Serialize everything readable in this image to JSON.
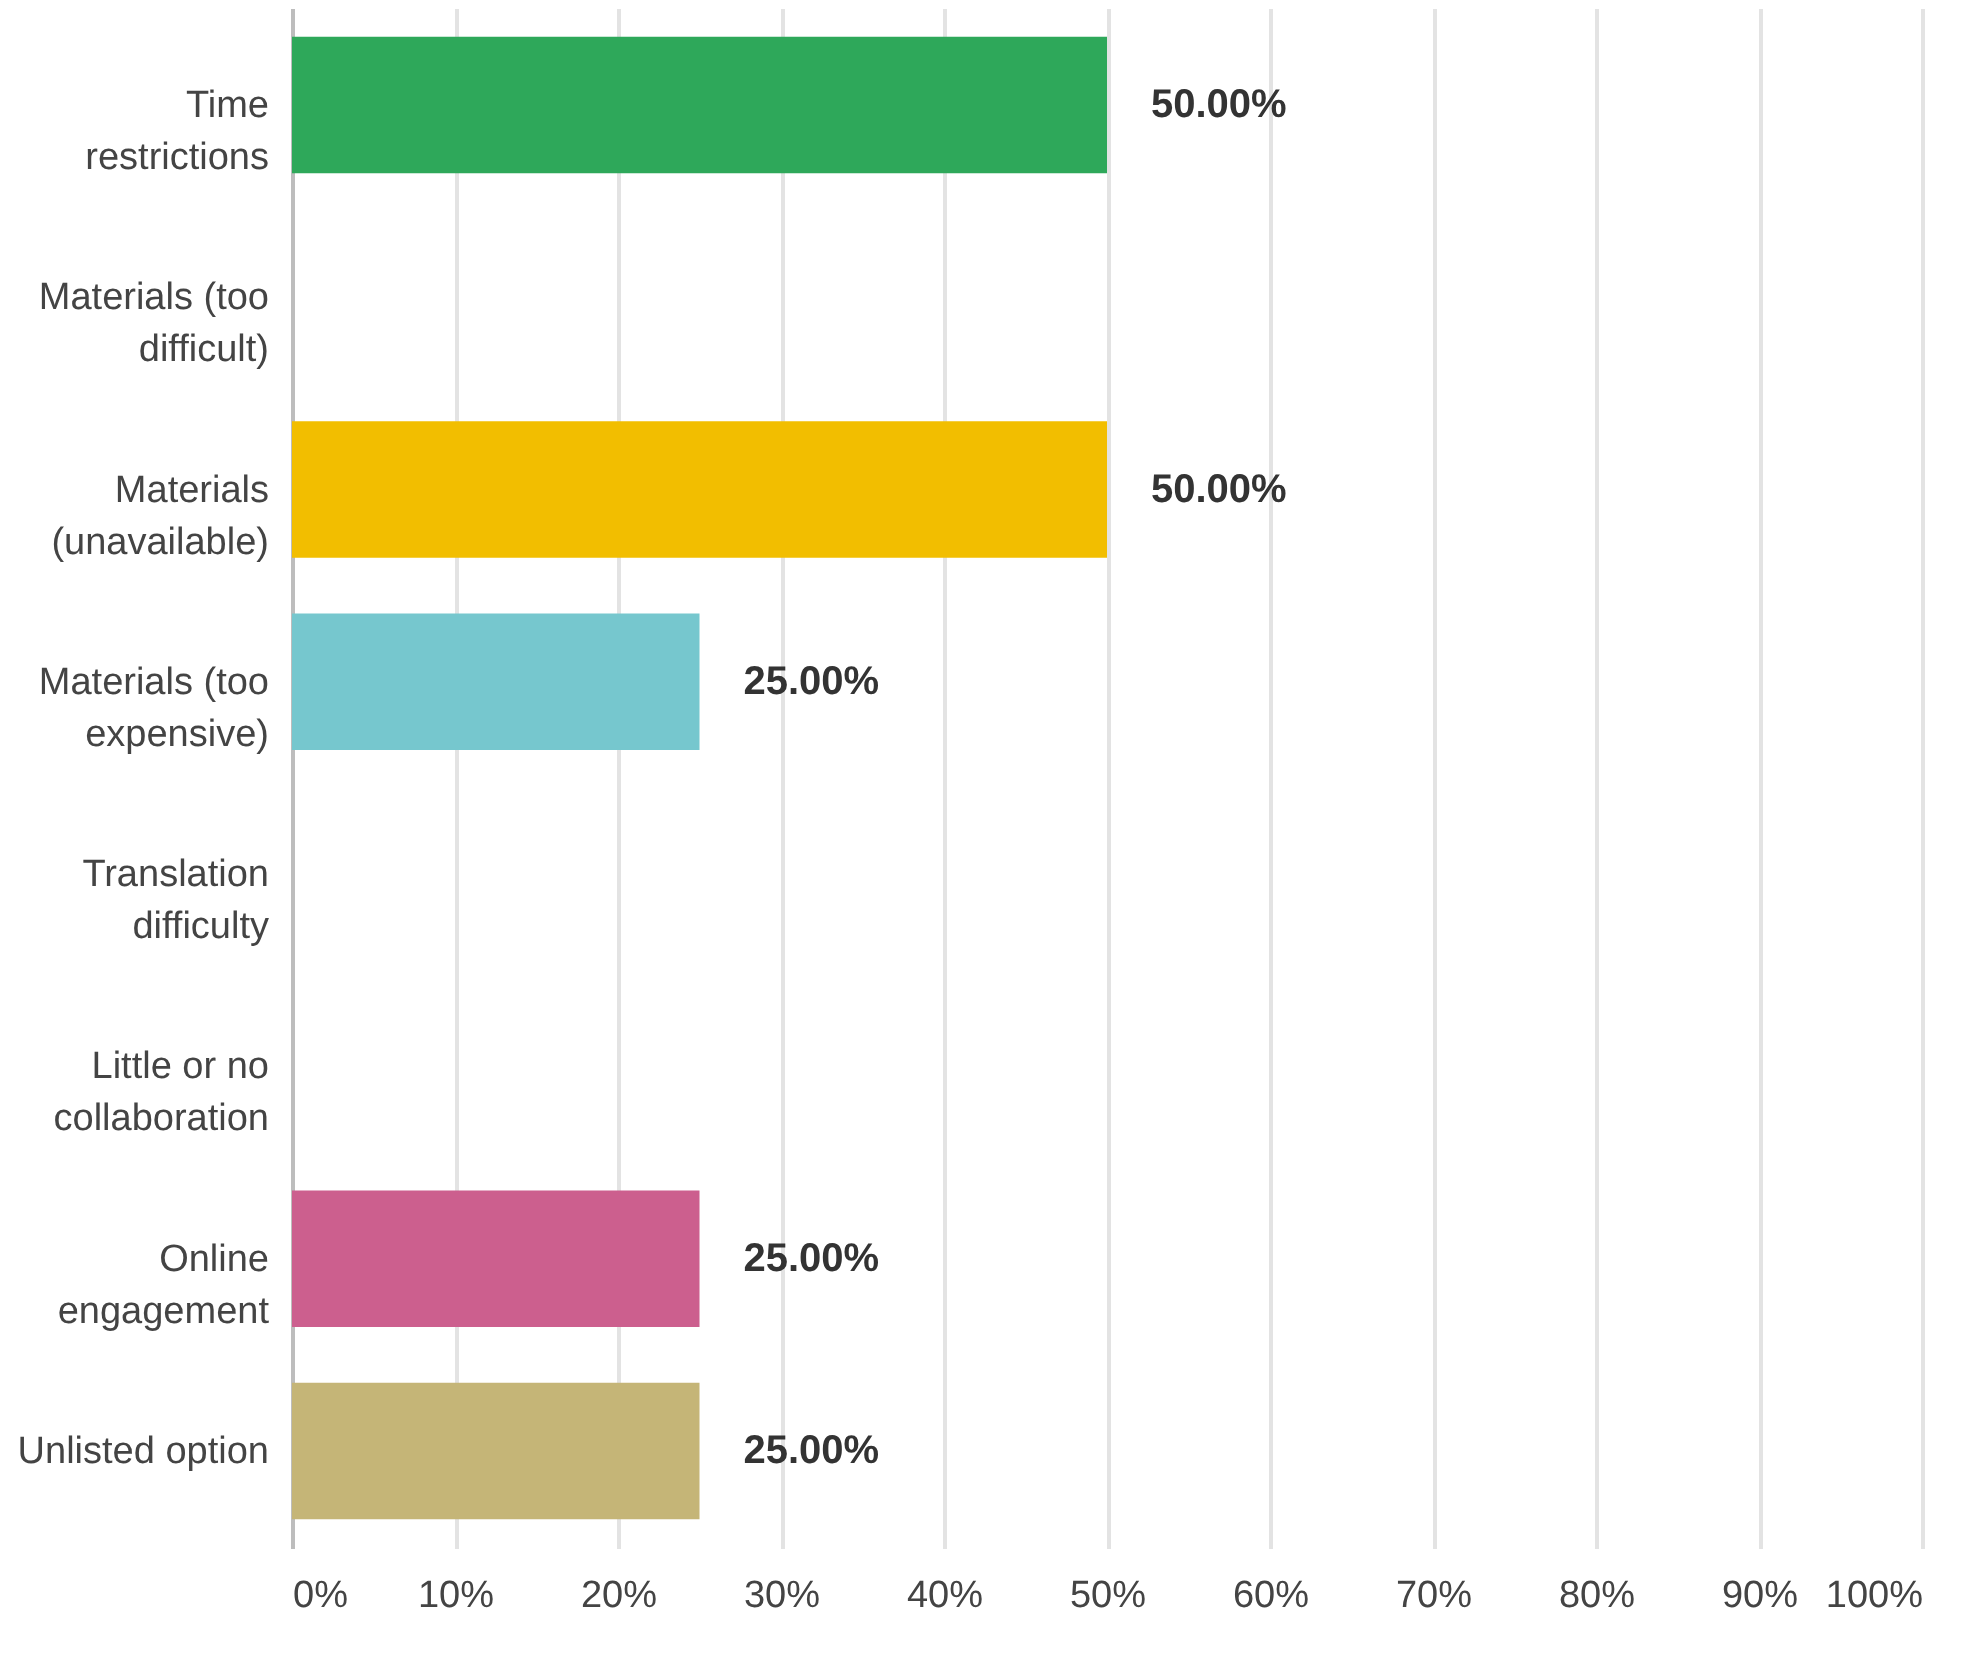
{
  "chart_data": {
    "type": "bar",
    "orientation": "horizontal",
    "categories": [
      "Time restrictions",
      "Materials (too difficult)",
      "Materials (unavailable)",
      "Materials (too expensive)",
      "Translation difficulty",
      "Little or no collaboration",
      "Online engagement",
      "Unlisted option"
    ],
    "values": [
      50,
      0,
      50,
      25,
      0,
      0,
      25,
      25
    ],
    "colors": [
      "#2ea85a",
      "#f07c2a",
      "#f2be00",
      "#76c7ce",
      "#507cb6",
      "#7d5ba6",
      "#cc5f8e",
      "#c5b577"
    ],
    "value_labels": [
      "50.00%",
      null,
      "50.00%",
      "25.00%",
      null,
      null,
      "25.00%",
      "25.00%"
    ],
    "xlim": [
      0,
      100
    ],
    "xticks": [
      {
        "value": 0,
        "label": "0%"
      },
      {
        "value": 10,
        "label": "10%"
      },
      {
        "value": 20,
        "label": "20%"
      },
      {
        "value": 30,
        "label": "30%"
      },
      {
        "value": 40,
        "label": "40%"
      },
      {
        "value": 50,
        "label": "50%"
      },
      {
        "value": 60,
        "label": "60%"
      },
      {
        "value": 70,
        "label": "70%"
      },
      {
        "value": 80,
        "label": "80%"
      },
      {
        "value": 90,
        "label": "90%"
      },
      {
        "value": 100,
        "label": "100%"
      }
    ],
    "grid": "x",
    "legend": false
  }
}
